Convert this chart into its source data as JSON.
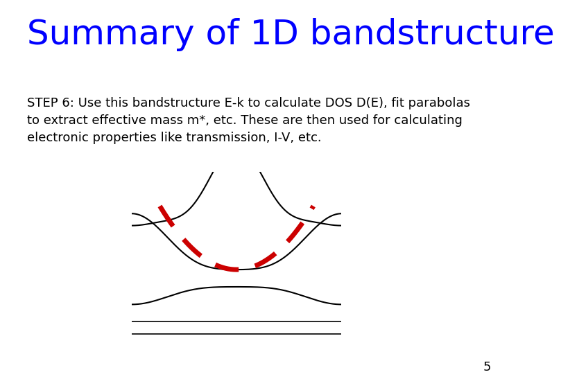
{
  "title": "Summary of 1D bandstructure",
  "title_color": "#0000FF",
  "title_fontsize": 36,
  "title_font": "Comic Sans MS",
  "body_text": "STEP 6: Use this bandstructure E-k to calculate DOS D(E), fit parabolas\nto extract effective mass m*, etc. These are then used for calculating\nelectronic properties like transmission, I-V, etc.",
  "body_fontsize": 13,
  "body_font": "Courier New",
  "page_number": "5",
  "bg_color": "#ffffff",
  "curve_color": "#000000",
  "dashed_color": "#cc0000"
}
